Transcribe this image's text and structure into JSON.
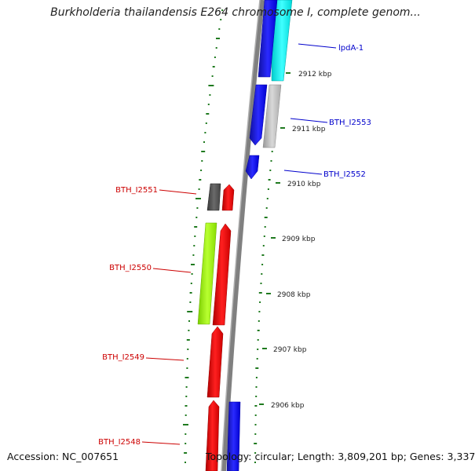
{
  "title": "Burkholderia thailandensis E264 chromosome I, complete genom...",
  "footer": {
    "accession": "Accession: NC_007651",
    "summary": "Topology: circular; Length: 3,809,201 bp; Genes: 3,337"
  },
  "ticks": [
    {
      "label": "2912 kbp"
    },
    {
      "label": "2911 kbp"
    },
    {
      "label": "2910 kbp"
    },
    {
      "label": "2909 kbp"
    },
    {
      "label": "2908 kbp"
    },
    {
      "label": "2907 kbp"
    },
    {
      "label": "2906 kbp"
    }
  ],
  "genes": [
    {
      "name": "lpdA-1",
      "color": "#0000cc",
      "fill": "#00ffff"
    },
    {
      "name": "BTH_I2553",
      "color": "#0000cc",
      "fill": "#0000ff"
    },
    {
      "name": "BTH_I2552",
      "color": "#0000cc",
      "fill": "#0000ff"
    },
    {
      "name": "BTH_I2551",
      "color": "#cc0000",
      "fill": "#555555"
    },
    {
      "name": "BTH_I2550",
      "color": "#cc0000",
      "fill": "#99ff00"
    },
    {
      "name": "BTH_I2549",
      "color": "#cc0000",
      "fill": "#ff0000"
    },
    {
      "name": "BTH_I2548",
      "color": "#cc0000",
      "fill": "#ff0000"
    }
  ],
  "colors": {
    "backbone": "#808080",
    "gc_skew": "#1f7a1f",
    "forward_strand": "#0000ff",
    "reverse_strand": "#ff0000"
  }
}
